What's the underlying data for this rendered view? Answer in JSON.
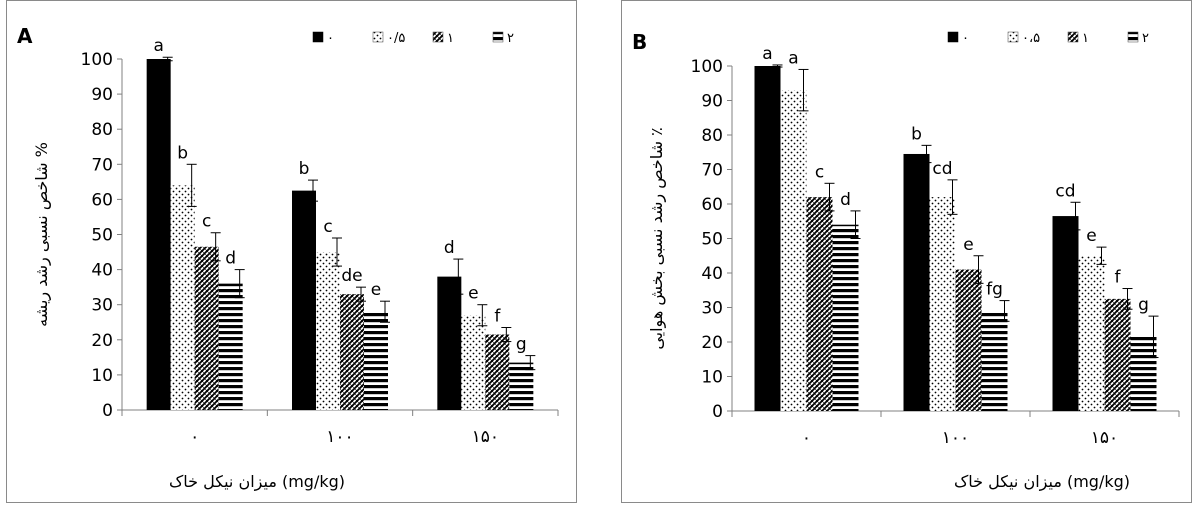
{
  "chart_data": [
    {
      "type": "bar",
      "panel_label": "A",
      "categories": [
        "۰",
        "۱۰۰",
        "۱۵۰"
      ],
      "series": [
        {
          "name": "۰",
          "values": [
            100,
            62.5,
            38
          ],
          "errors": [
            0.5,
            3,
            5
          ],
          "letters": [
            "a",
            "b",
            "d"
          ]
        },
        {
          "name": "۰/۵",
          "values": [
            64,
            45,
            27
          ],
          "errors": [
            6,
            4,
            3
          ],
          "letters": [
            "b",
            "c",
            "e"
          ]
        },
        {
          "name": "۱",
          "values": [
            46.5,
            33,
            21.5
          ],
          "errors": [
            4,
            2,
            2
          ],
          "letters": [
            "c",
            "de",
            "f"
          ]
        },
        {
          "name": "۲",
          "values": [
            36,
            28,
            13.5
          ],
          "errors": [
            4,
            3,
            2
          ],
          "letters": [
            "d",
            "e",
            "g"
          ]
        }
      ],
      "ylabel": "شاخص نسبی رشد ریشه  %",
      "xlabel": "میزان نیکل خاک (mg/kg)",
      "ylim": [
        0,
        100
      ],
      "yticks": [
        0,
        10,
        20,
        30,
        40,
        50,
        60,
        70,
        80,
        90,
        100
      ],
      "legend_position": "top-right",
      "grid": false
    },
    {
      "type": "bar",
      "panel_label": "B",
      "categories": [
        "۰",
        "۱۰۰",
        "۱۵۰"
      ],
      "series": [
        {
          "name": "۰",
          "values": [
            100,
            74.5,
            56.5
          ],
          "errors": [
            0.3,
            2.5,
            4
          ],
          "letters": [
            "a",
            "b",
            "cd"
          ]
        },
        {
          "name": "۰،۵",
          "values": [
            93,
            62,
            45
          ],
          "errors": [
            6,
            5,
            2.5
          ],
          "letters": [
            "a",
            "cd",
            "e"
          ]
        },
        {
          "name": "۱",
          "values": [
            62,
            41,
            32.5
          ],
          "errors": [
            4,
            4,
            3
          ],
          "letters": [
            "c",
            "e",
            "f"
          ]
        },
        {
          "name": "۲",
          "values": [
            54,
            29,
            21.5
          ],
          "errors": [
            4,
            3,
            6
          ],
          "letters": [
            "d",
            "fg",
            "g"
          ]
        }
      ],
      "ylabel": "شاخص رشد نسبی بخش هوایی ٪",
      "xlabel": "میزان نیکل خاک  (mg/kg)",
      "ylim": [
        0,
        100
      ],
      "yticks": [
        0,
        10,
        20,
        30,
        40,
        50,
        60,
        70,
        80,
        90,
        100
      ],
      "legend_position": "top-right",
      "grid": false
    }
  ]
}
